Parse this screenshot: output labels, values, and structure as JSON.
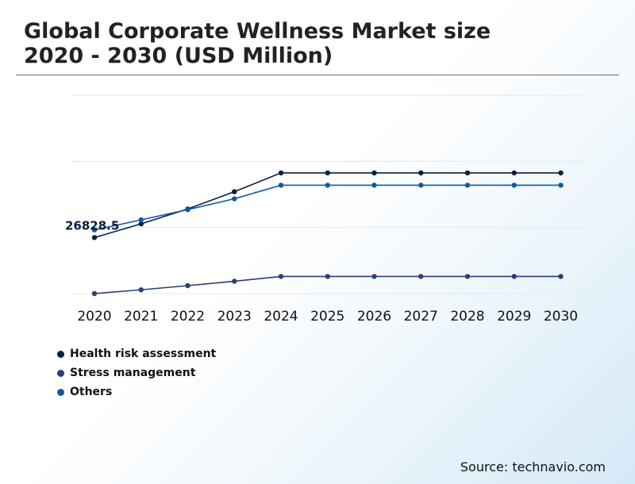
{
  "title_lines": [
    "Global Corporate Wellness Market size",
    "2020 - 2030 (USD Million)"
  ],
  "source": "Source: technavio.com",
  "chart_data": {
    "type": "line",
    "x": [
      "2020",
      "2021",
      "2022",
      "2023",
      "2024",
      "2025",
      "2026",
      "2027",
      "2028",
      "2029",
      "2030"
    ],
    "ylim": [
      0,
      95000
    ],
    "grid": true,
    "legend_position": "bottom-left",
    "annotations": [
      {
        "series": 0,
        "index": 0,
        "text": "26828.5"
      }
    ],
    "series": [
      {
        "name": "Health risk assessment",
        "color": "#0b1f3f",
        "values": [
          26828.5,
          33400,
          40500,
          48800,
          57800,
          57800,
          57800,
          57800,
          57800,
          57800,
          57800
        ]
      },
      {
        "name": "Stress management",
        "color": "#2b3f73",
        "values": [
          0,
          1800,
          3800,
          5900,
          8200,
          8200,
          8200,
          8200,
          8200,
          8200,
          8200
        ]
      },
      {
        "name": "Others",
        "color": "#0d5aa7",
        "values": [
          30500,
          35300,
          40200,
          45400,
          51900,
          51900,
          51900,
          51900,
          51900,
          51900,
          51900
        ]
      }
    ]
  }
}
